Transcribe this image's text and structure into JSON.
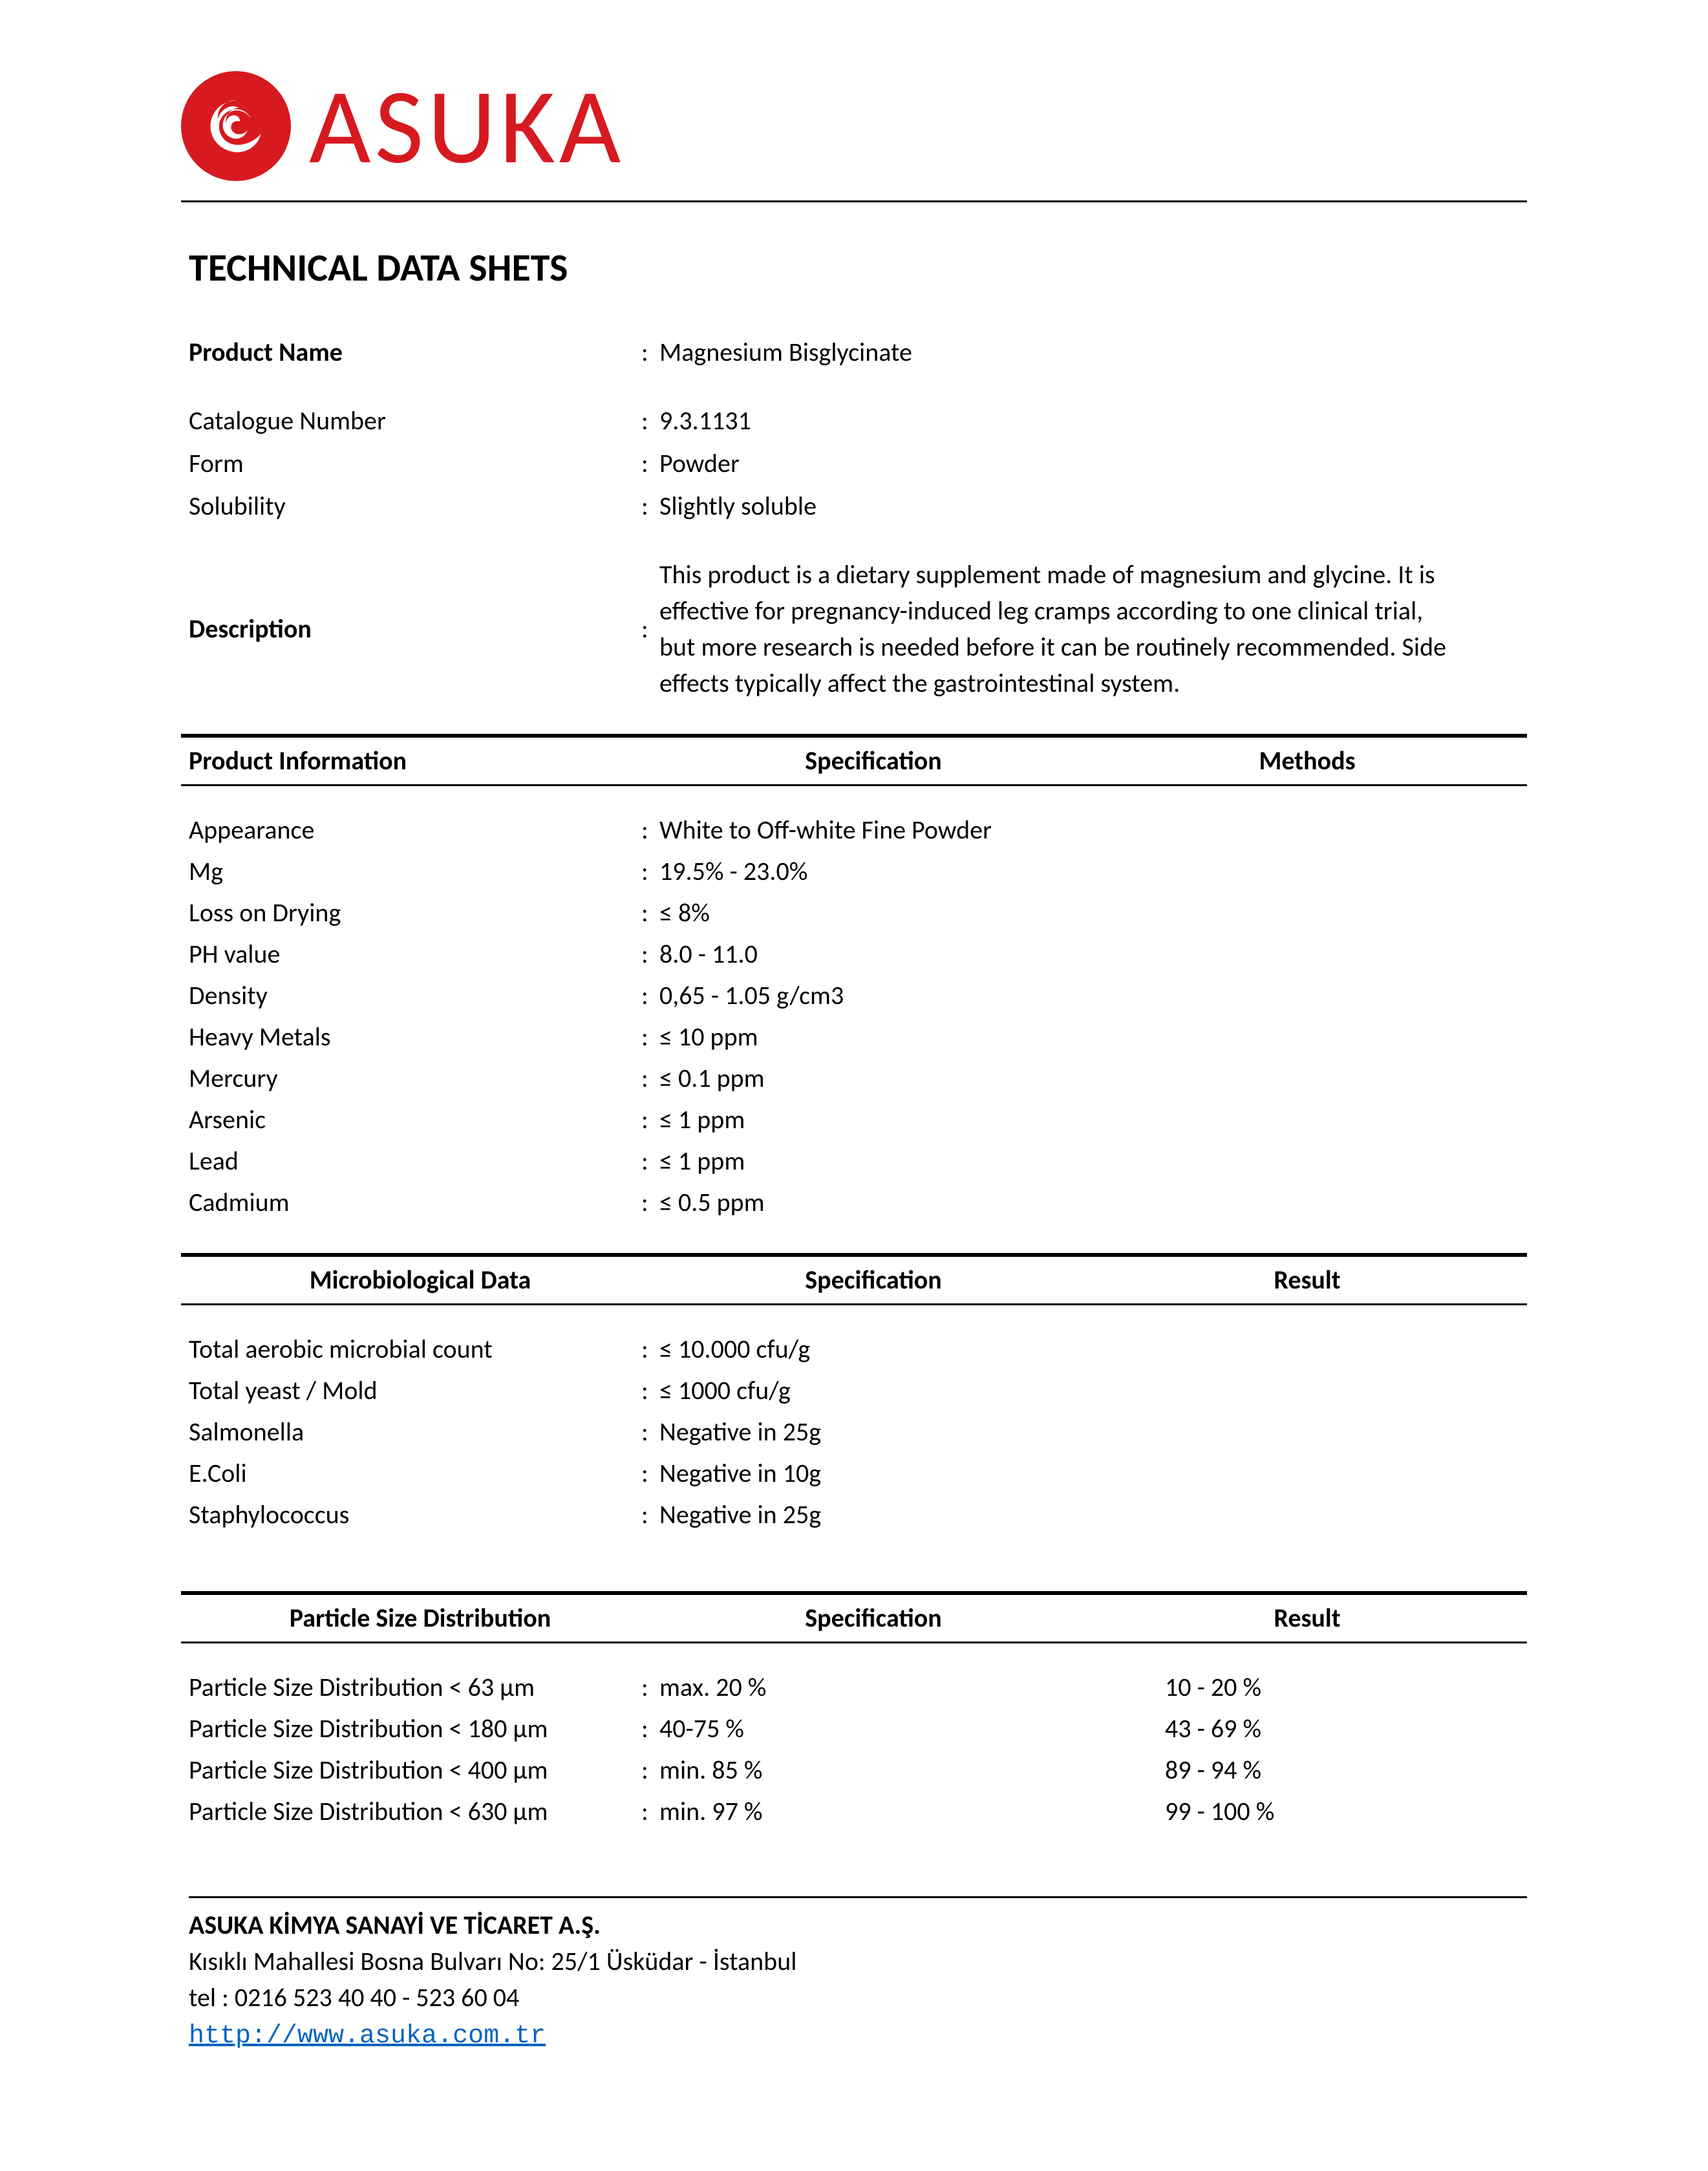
{
  "logo": {
    "brand_text": "ASUKA",
    "brand_color": "#d71920"
  },
  "page_title": "TECHNICAL DATA SHETS",
  "header_info": {
    "product_name_label": "Product Name",
    "product_name": "Magnesium Bisglycinate",
    "catalogue_label": "Catalogue Number",
    "catalogue": "9.3.1131",
    "form_label": "Form",
    "form": "Powder",
    "solubility_label": "Solubility",
    "solubility": "Slightly soluble",
    "description_label": "Description",
    "description": "This product is a dietary supplement made of magnesium and glycine. It is effective for pregnancy-induced leg cramps according to one clinical trial, but more research is needed before it can be routinely recommended. Side effects typically affect the gastrointestinal system."
  },
  "section_product_info": {
    "header": {
      "c1": "Product Information",
      "c2": "Specification",
      "c3": "Methods"
    },
    "rows": [
      {
        "label": "Appearance",
        "spec": "White to Off-white Fine Powder"
      },
      {
        "label": "Mg",
        "spec": "19.5% - 23.0%"
      },
      {
        "label": "Loss on Drying",
        "spec": "≤ 8%"
      },
      {
        "label": "PH value",
        "spec": "8.0 - 11.0"
      },
      {
        "label": "Density",
        "spec": "0,65 - 1.05 g/cm3"
      },
      {
        "label": "Heavy Metals",
        "spec": "≤ 10 ppm"
      },
      {
        "label": "Mercury",
        "spec": "≤ 0.1 ppm"
      },
      {
        "label": "Arsenic",
        "spec": "≤ 1 ppm"
      },
      {
        "label": "Lead",
        "spec": "≤ 1 ppm"
      },
      {
        "label": "Cadmium",
        "spec": "≤ 0.5 ppm"
      }
    ]
  },
  "section_micro": {
    "header": {
      "c1": "Microbiological Data",
      "c2": "Specification",
      "c3": "Result"
    },
    "rows": [
      {
        "label": "Total aerobic microbial count",
        "spec": "≤ 10.000 cfu/g"
      },
      {
        "label": "Total yeast / Mold",
        "spec": "≤ 1000 cfu/g"
      },
      {
        "label": "Salmonella",
        "spec": "Negative in 25g"
      },
      {
        "label": "E.Coli",
        "spec": "Negative in 10g"
      },
      {
        "label": "Staphylococcus",
        "spec": "Negative in 25g"
      }
    ]
  },
  "section_particle": {
    "header": {
      "c1": "Particle Size Distribution",
      "c2": "Specification",
      "c3": "Result"
    },
    "rows": [
      {
        "label": "Particle Size Distribution < 63 µm",
        "spec": "max. 20 %",
        "result": "10 - 20   %"
      },
      {
        "label": "Particle Size Distribution < 180 µm",
        "spec": " 40-75   %",
        "result": "43 - 69   %"
      },
      {
        "label": "Particle Size Distribution < 400 µm",
        "spec": "min. 85  %",
        "result": "89 - 94   %"
      },
      {
        "label": "Particle Size Distribution < 630 µm",
        "spec": "min. 97  %",
        "result": "99 - 100 %"
      }
    ]
  },
  "footer": {
    "company": "ASUKA KİMYA SANAYİ VE TİCARET A.Ş.",
    "address": "Kısıklı Mahallesi Bosna Bulvarı No: 25/1 Üsküdar - İstanbul",
    "tel": "tel : 0216 523 40 40 - 523 60 04",
    "url": "http://www.asuka.com.tr"
  },
  "colors": {
    "brand": "#d71920",
    "text": "#000000",
    "link": "#0563c1",
    "background": "#ffffff"
  },
  "typography": {
    "body_font": "Calibri",
    "body_size_pt": 11,
    "title_size_pt": 18,
    "logo_size_pt": 48
  }
}
